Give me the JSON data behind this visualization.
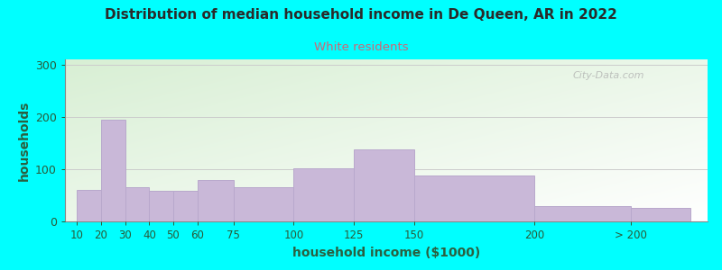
{
  "title": "Distribution of median household income in De Queen, AR in 2022",
  "subtitle": "White residents",
  "xlabel": "household income ($1000)",
  "ylabel": "households",
  "background_outer": "#00FFFF",
  "bar_color": "#c9b8d8",
  "bar_edge_color": "#b8a8cc",
  "title_color": "#2a2a2a",
  "subtitle_color": "#cc6677",
  "axis_label_color": "#2a6040",
  "tick_label_color": "#2a5a38",
  "categories": [
    "10",
    "20",
    "30",
    "40",
    "50",
    "60",
    "75",
    "100",
    "125",
    "150",
    "200",
    "> 200"
  ],
  "values": [
    60,
    195,
    65,
    58,
    58,
    80,
    65,
    102,
    137,
    87,
    30,
    25
  ],
  "bar_positions": [
    10,
    20,
    30,
    40,
    50,
    60,
    75,
    100,
    125,
    150,
    200,
    240
  ],
  "bar_widths": [
    10,
    10,
    10,
    10,
    10,
    15,
    25,
    25,
    25,
    50,
    40,
    25
  ],
  "ylim": [
    0,
    310
  ],
  "yticks": [
    0,
    100,
    200,
    300
  ],
  "watermark": "City-Data.com",
  "figsize": [
    8.0,
    3.0
  ],
  "dpi": 100
}
